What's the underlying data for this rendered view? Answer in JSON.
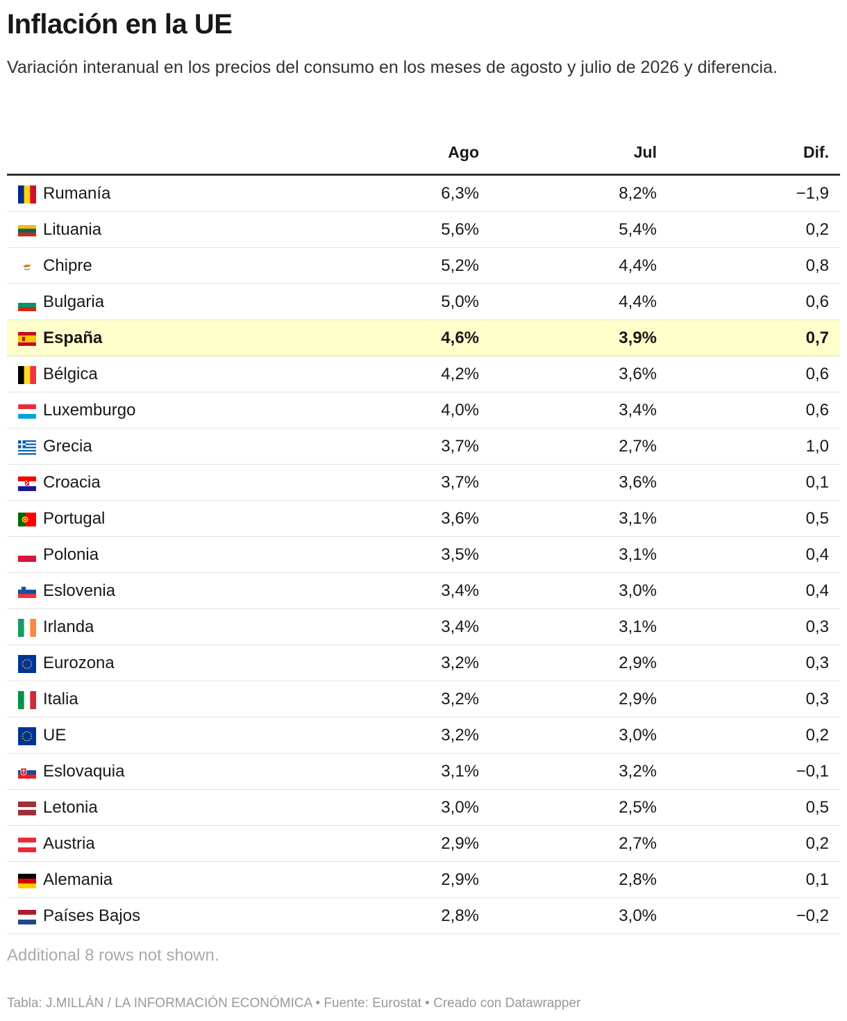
{
  "header": {
    "title": "Inflación en la UE",
    "subtitle": "Variación interanual en los precios del consumo en los meses de agosto y julio de 2026 y diferencia."
  },
  "chart_data": {
    "type": "table",
    "columns": [
      "",
      "Ago",
      "Jul",
      "Dif."
    ],
    "highlight_row": "España",
    "rows": [
      {
        "flag": "romania-flag-icon",
        "name": "Rumanía",
        "ago": "6,3%",
        "jul": "8,2%",
        "dif": "−1,9"
      },
      {
        "flag": "lithuania-flag-icon",
        "name": "Lituania",
        "ago": "5,6%",
        "jul": "5,4%",
        "dif": "0,2"
      },
      {
        "flag": "cyprus-flag-icon",
        "name": "Chipre",
        "ago": "5,2%",
        "jul": "4,4%",
        "dif": "0,8"
      },
      {
        "flag": "bulgaria-flag-icon",
        "name": "Bulgaria",
        "ago": "5,0%",
        "jul": "4,4%",
        "dif": "0,6"
      },
      {
        "flag": "spain-flag-icon",
        "name": "España",
        "ago": "4,6%",
        "jul": "3,9%",
        "dif": "0,7"
      },
      {
        "flag": "belgium-flag-icon",
        "name": "Bélgica",
        "ago": "4,2%",
        "jul": "3,6%",
        "dif": "0,6"
      },
      {
        "flag": "luxembourg-flag-icon",
        "name": "Luxemburgo",
        "ago": "4,0%",
        "jul": "3,4%",
        "dif": "0,6"
      },
      {
        "flag": "greece-flag-icon",
        "name": "Grecia",
        "ago": "3,7%",
        "jul": "2,7%",
        "dif": "1,0"
      },
      {
        "flag": "croatia-flag-icon",
        "name": "Croacia",
        "ago": "3,7%",
        "jul": "3,6%",
        "dif": "0,1"
      },
      {
        "flag": "portugal-flag-icon",
        "name": "Portugal",
        "ago": "3,6%",
        "jul": "3,1%",
        "dif": "0,5"
      },
      {
        "flag": "poland-flag-icon",
        "name": "Polonia",
        "ago": "3,5%",
        "jul": "3,1%",
        "dif": "0,4"
      },
      {
        "flag": "slovenia-flag-icon",
        "name": "Eslovenia",
        "ago": "3,4%",
        "jul": "3,0%",
        "dif": "0,4"
      },
      {
        "flag": "ireland-flag-icon",
        "name": "Irlanda",
        "ago": "3,4%",
        "jul": "3,1%",
        "dif": "0,3"
      },
      {
        "flag": "eu-flag-icon",
        "name": "Eurozona",
        "ago": "3,2%",
        "jul": "2,9%",
        "dif": "0,3"
      },
      {
        "flag": "italy-flag-icon",
        "name": "Italia",
        "ago": "3,2%",
        "jul": "2,9%",
        "dif": "0,3"
      },
      {
        "flag": "eu-flag-icon",
        "name": "UE",
        "ago": "3,2%",
        "jul": "3,0%",
        "dif": "0,2"
      },
      {
        "flag": "slovakia-flag-icon",
        "name": "Eslovaquia",
        "ago": "3,1%",
        "jul": "3,2%",
        "dif": "−0,1"
      },
      {
        "flag": "latvia-flag-icon",
        "name": "Letonia",
        "ago": "3,0%",
        "jul": "2,5%",
        "dif": "0,5"
      },
      {
        "flag": "austria-flag-icon",
        "name": "Austria",
        "ago": "2,9%",
        "jul": "2,7%",
        "dif": "0,2"
      },
      {
        "flag": "germany-flag-icon",
        "name": "Alemania",
        "ago": "2,9%",
        "jul": "2,8%",
        "dif": "0,1"
      },
      {
        "flag": "netherlands-flag-icon",
        "name": "Países Bajos",
        "ago": "2,8%",
        "jul": "3,0%",
        "dif": "−0,2"
      }
    ]
  },
  "note": "Additional 8 rows not shown.",
  "footer": "Tabla: J.MILLÁN / LA INFORMACIÓN ECONÓMICA • Fuente: Eurostat • Creado con Datawrapper"
}
